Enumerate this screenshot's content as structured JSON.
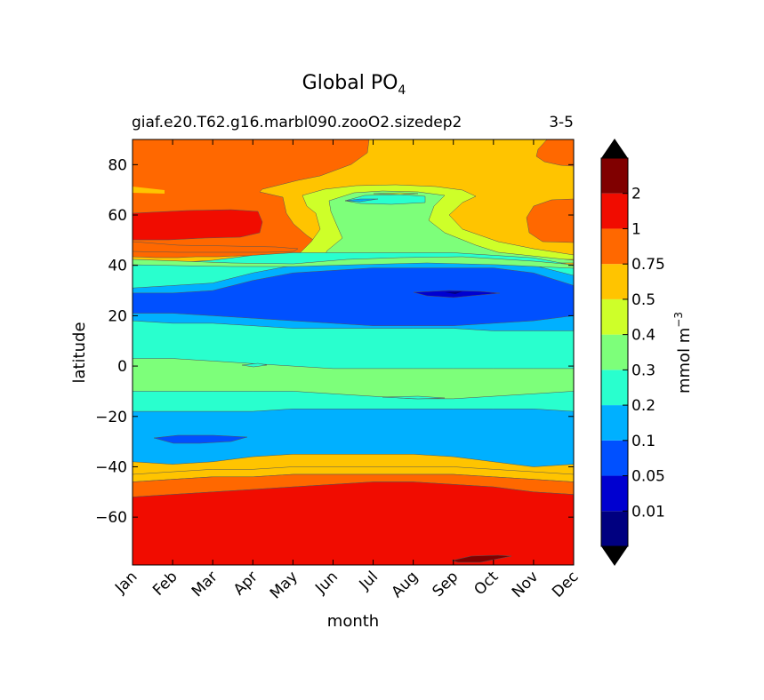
{
  "chart_data": {
    "type": "filled_contour",
    "title": "Global PO",
    "title_subscript": "4",
    "subtitle_left": "giaf.e20.T62.g16.marbl090.zooO2.sizedep2",
    "subtitle_right": "3-5",
    "xlabel": "month",
    "ylabel": "latitude",
    "x_categories": [
      "Jan",
      "Feb",
      "Mar",
      "Apr",
      "May",
      "Jun",
      "Jul",
      "Aug",
      "Sep",
      "Oct",
      "Nov",
      "Dec"
    ],
    "ylim": [
      -79,
      90
    ],
    "y_ticks": [
      80,
      60,
      40,
      20,
      0,
      -20,
      -40,
      -60
    ],
    "y_tick_labels": [
      "80",
      "60",
      "40",
      "20",
      "0",
      "−20",
      "−40",
      "−60"
    ],
    "colorbar": {
      "label": "mmol m",
      "label_superscript": "−3",
      "tick_labels": [
        "0.01",
        "0.05",
        "0.1",
        "0.2",
        "0.3",
        "0.4",
        "0.5",
        "0.75",
        "1",
        "2"
      ],
      "bands": [
        {
          "range": "<0",
          "color": "#000000"
        },
        {
          "range": "0-0.01",
          "color": "#000080"
        },
        {
          "range": "0.01-0.05",
          "color": "#0000d0"
        },
        {
          "range": "0.05-0.1",
          "color": "#0050ff"
        },
        {
          "range": "0.1-0.2",
          "color": "#00b0ff"
        },
        {
          "range": "0.2-0.3",
          "color": "#29ffce"
        },
        {
          "range": "0.3-0.4",
          "color": "#7dff7a"
        },
        {
          "range": "0.4-0.5",
          "color": "#ceff29"
        },
        {
          "range": "0.5-0.75",
          "color": "#ffc400"
        },
        {
          "range": "0.75-1",
          "color": "#ff6800"
        },
        {
          "range": "1-2",
          "color": "#f10c00"
        },
        {
          "range": "2-inf",
          "color": "#800000"
        },
        {
          "range": ">max",
          "color": "#000000"
        }
      ]
    },
    "fields": [
      {
        "name": "band_0p2_0p3",
        "color": "#29ffce",
        "top": [
          40,
          41,
          42,
          44,
          45,
          45,
          45,
          45,
          45,
          44,
          43,
          40
        ],
        "bottom": [
          -36,
          -37,
          -36,
          -34,
          -34,
          -34,
          -34,
          -34,
          -35,
          -37,
          -38,
          -37
        ]
      },
      {
        "name": "band_0p1_0p2",
        "color": "#00b0ff",
        "top": [
          31,
          32,
          33,
          37,
          40,
          41,
          42,
          42,
          42,
          42,
          40,
          36
        ],
        "bottom": [
          -38,
          -39,
          -38,
          -36,
          -35,
          -35,
          -35,
          -35,
          -36,
          -38,
          -40,
          -39
        ]
      },
      {
        "name": "band_0p05_0p1_north",
        "color": "#0050ff",
        "top": [
          29,
          29,
          30,
          34,
          37,
          38,
          39,
          39,
          39,
          39,
          37,
          32
        ],
        "bottom": [
          21,
          21,
          20,
          19,
          18,
          17,
          16,
          16,
          16,
          17,
          18,
          20
        ]
      },
      {
        "name": "band_0p2_0p3_tropics",
        "color": "#29ffce",
        "top": [
          18,
          17,
          17,
          16,
          15,
          15,
          15,
          15,
          15,
          14,
          14,
          14
        ],
        "bottom": [
          -18,
          -18,
          -18,
          -18,
          -17,
          -17,
          -17,
          -17,
          -17,
          -17,
          -17,
          -18
        ]
      },
      {
        "name": "band_0p3_0p4_equator",
        "color": "#7dff7a",
        "top": [
          3,
          3,
          2,
          1,
          0,
          -1,
          -1,
          -1,
          -1,
          -1,
          -1,
          -1
        ],
        "bottom": [
          -10,
          -10,
          -10,
          -10,
          -10,
          -11,
          -12,
          -13,
          -13,
          -12,
          -11,
          -10
        ]
      },
      {
        "name": "band_0p5_0p75_south",
        "color": "#ffc400",
        "top": [
          -43,
          -42,
          -41,
          -41,
          -40,
          -40,
          -40,
          -40,
          -40,
          -41,
          -42,
          -43
        ],
        "bottom": [
          -46,
          -45,
          -44,
          -44,
          -43,
          -43,
          -43,
          -43,
          -43,
          -44,
          -45,
          -46
        ]
      },
      {
        "name": "band_0p75_1_south",
        "color": "#ff6800",
        "top": [
          -46,
          -45,
          -44,
          -44,
          -43,
          -43,
          -43,
          -43,
          -43,
          -44,
          -45,
          -46
        ],
        "bottom": [
          -52,
          -51,
          -50,
          -49,
          -48,
          -47,
          -46,
          -46,
          -47,
          -48,
          -50,
          -51
        ]
      },
      {
        "name": "band_1_2_south",
        "color": "#f10c00",
        "top": [
          -52,
          -51,
          -50,
          -49,
          -48,
          -47,
          -46,
          -46,
          -47,
          -48,
          -50,
          -51
        ],
        "bottom": [
          -79,
          -79,
          -79,
          -79,
          -79,
          -79,
          -79,
          -79,
          -79,
          -79,
          -79,
          -79
        ]
      }
    ]
  }
}
